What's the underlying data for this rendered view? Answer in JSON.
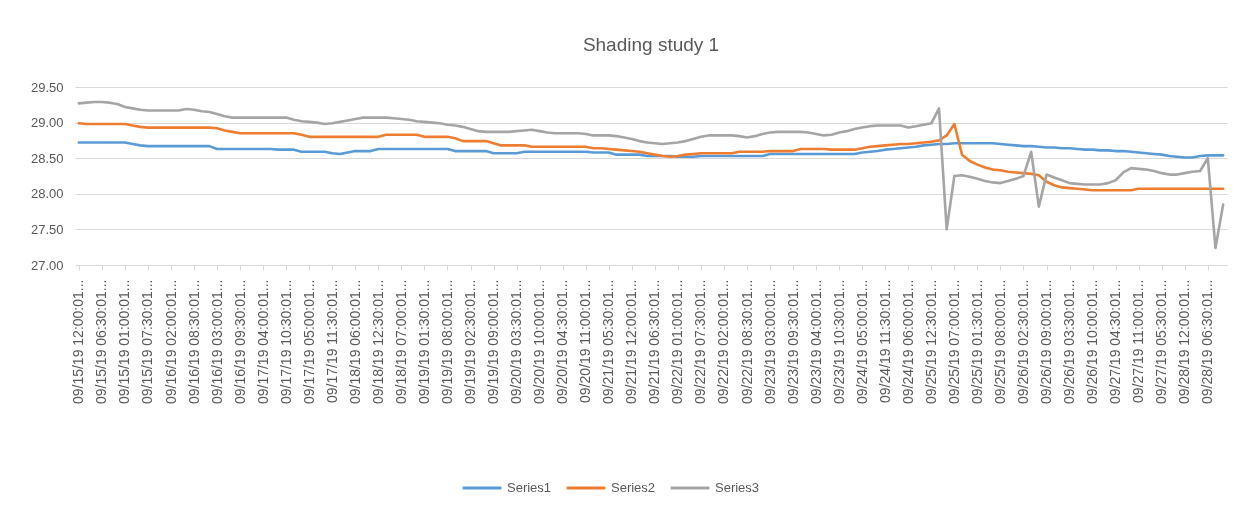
{
  "chart_data": {
    "type": "line",
    "title": "Shading study 1",
    "categories": [
      "09/15/19 12:00:01...",
      null,
      null,
      "09/15/19 06:30:01...",
      null,
      null,
      "09/15/19 01:00:01...",
      null,
      null,
      "09/15/19 07:30:01...",
      null,
      null,
      "09/16/19 02:00:01...",
      null,
      null,
      "09/16/19 08:30:01...",
      null,
      null,
      "09/16/19 03:00:01...",
      null,
      null,
      "09/16/19 09:30:01...",
      null,
      null,
      "09/17/19 04:00:01...",
      null,
      null,
      "09/17/19 10:30:01...",
      null,
      null,
      "09/17/19 05:00:01...",
      null,
      null,
      "09/17/19 11:30:01...",
      null,
      null,
      "09/18/19 06:00:01...",
      null,
      null,
      "09/18/19 12:30:01...",
      null,
      null,
      "09/18/19 07:00:01...",
      null,
      null,
      "09/19/19 01:30:01...",
      null,
      null,
      "09/19/19 08:00:01...",
      null,
      null,
      "09/19/19 02:30:01...",
      null,
      null,
      "09/19/19 09:00:01...",
      null,
      null,
      "09/20/19 03:30:01...",
      null,
      null,
      "09/20/19 10:00:01...",
      null,
      null,
      "09/20/19 04:30:01...",
      null,
      null,
      "09/20/19 11:00:01...",
      null,
      null,
      "09/21/19 05:30:01...",
      null,
      null,
      "09/21/19 12:00:01...",
      null,
      null,
      "09/21/19 06:30:01...",
      null,
      null,
      "09/22/19 01:00:01...",
      null,
      null,
      "09/22/19 07:30:01...",
      null,
      null,
      "09/22/19 02:00:01...",
      null,
      null,
      "09/22/19 08:30:01...",
      null,
      null,
      "09/23/19 03:00:01...",
      null,
      null,
      "09/23/19 09:30:01...",
      null,
      null,
      "09/23/19 04:00:01...",
      null,
      null,
      "09/23/19 10:30:01...",
      null,
      null,
      "09/24/19 05:00:01...",
      null,
      null,
      "09/24/19 11:30:01...",
      null,
      null,
      "09/24/19 06:00:01...",
      null,
      null,
      "09/25/19 12:30:01...",
      null,
      null,
      "09/25/19 07:00:01...",
      null,
      null,
      "09/25/19 01:30:01...",
      null,
      null,
      "09/25/19 08:00:01...",
      null,
      null,
      "09/26/19 02:30:01...",
      null,
      null,
      "09/26/19 09:00:01...",
      null,
      null,
      "09/26/19 03:30:01...",
      null,
      null,
      "09/26/19 10:00:01...",
      null,
      null,
      "09/27/19 04:30:01...",
      null,
      null,
      "09/27/19 11:00:01...",
      null,
      null,
      "09/27/19 05:30:01...",
      null,
      null,
      "09/28/19 12:00:01...",
      null,
      null,
      "09/28/19 06:30:01...",
      null,
      null
    ],
    "series": [
      {
        "name": "Series1",
        "color": "#5b9bd5",
        "values": [
          28.72,
          28.72,
          28.72,
          28.72,
          28.72,
          28.72,
          28.72,
          28.7,
          28.68,
          28.67,
          28.67,
          28.67,
          28.67,
          28.67,
          28.67,
          28.67,
          28.67,
          28.67,
          28.63,
          28.63,
          28.63,
          28.63,
          28.63,
          28.63,
          28.63,
          28.63,
          28.62,
          28.62,
          28.62,
          28.59,
          28.59,
          28.59,
          28.59,
          28.57,
          28.56,
          28.58,
          28.6,
          28.6,
          28.6,
          28.63,
          28.63,
          28.63,
          28.63,
          28.63,
          28.63,
          28.63,
          28.63,
          28.63,
          28.63,
          28.6,
          28.6,
          28.6,
          28.6,
          28.6,
          28.57,
          28.57,
          28.57,
          28.57,
          28.59,
          28.59,
          28.59,
          28.59,
          28.59,
          28.59,
          28.59,
          28.59,
          28.59,
          28.58,
          28.58,
          28.58,
          28.55,
          28.55,
          28.55,
          28.55,
          28.53,
          28.53,
          28.53,
          28.53,
          28.52,
          28.52,
          28.52,
          28.53,
          28.53,
          28.53,
          28.53,
          28.53,
          28.53,
          28.53,
          28.53,
          28.53,
          28.56,
          28.56,
          28.56,
          28.56,
          28.56,
          28.56,
          28.56,
          28.56,
          28.56,
          28.56,
          28.56,
          28.56,
          28.58,
          28.59,
          28.6,
          28.62,
          28.63,
          28.64,
          28.65,
          28.66,
          28.68,
          28.69,
          28.7,
          28.7,
          28.71,
          28.71,
          28.71,
          28.71,
          28.71,
          28.71,
          28.7,
          28.69,
          28.68,
          28.67,
          28.67,
          28.66,
          28.65,
          28.65,
          28.64,
          28.64,
          28.63,
          28.62,
          28.62,
          28.61,
          28.61,
          28.6,
          28.6,
          28.59,
          28.58,
          28.57,
          28.56,
          28.55,
          28.53,
          28.52,
          28.51,
          28.51,
          28.53,
          28.54,
          28.54,
          28.54
        ]
      },
      {
        "name": "Series2",
        "color": "#ed7d31",
        "values": [
          28.99,
          28.98,
          28.98,
          28.98,
          28.98,
          28.98,
          28.98,
          28.96,
          28.94,
          28.93,
          28.93,
          28.93,
          28.93,
          28.93,
          28.93,
          28.93,
          28.93,
          28.93,
          28.92,
          28.89,
          28.87,
          28.85,
          28.85,
          28.85,
          28.85,
          28.85,
          28.85,
          28.85,
          28.85,
          28.83,
          28.8,
          28.8,
          28.8,
          28.8,
          28.8,
          28.8,
          28.8,
          28.8,
          28.8,
          28.8,
          28.83,
          28.83,
          28.83,
          28.83,
          28.83,
          28.8,
          28.8,
          28.8,
          28.8,
          28.78,
          28.74,
          28.74,
          28.74,
          28.74,
          28.71,
          28.68,
          28.68,
          28.68,
          28.68,
          28.66,
          28.66,
          28.66,
          28.66,
          28.66,
          28.66,
          28.66,
          28.66,
          28.64,
          28.64,
          28.63,
          28.62,
          28.61,
          28.6,
          28.59,
          28.57,
          28.55,
          28.53,
          28.52,
          28.53,
          28.55,
          28.56,
          28.57,
          28.57,
          28.57,
          28.57,
          28.57,
          28.59,
          28.59,
          28.59,
          28.59,
          28.6,
          28.6,
          28.6,
          28.6,
          28.63,
          28.63,
          28.63,
          28.63,
          28.62,
          28.62,
          28.62,
          28.62,
          28.64,
          28.66,
          28.67,
          28.68,
          28.69,
          28.7,
          28.7,
          28.71,
          28.72,
          28.73,
          28.75,
          28.82,
          28.98,
          28.55,
          28.46,
          28.41,
          28.37,
          28.34,
          28.33,
          28.31,
          28.3,
          28.29,
          28.28,
          28.26,
          28.17,
          28.12,
          28.09,
          28.08,
          28.07,
          28.06,
          28.05,
          28.05,
          28.05,
          28.05,
          28.05,
          28.05,
          28.07,
          28.07,
          28.07,
          28.07,
          28.07,
          28.07,
          28.07,
          28.07,
          28.07,
          28.07,
          28.07,
          28.07
        ]
      },
      {
        "name": "Series3",
        "color": "#a5a5a5",
        "values": [
          29.27,
          29.28,
          29.29,
          29.29,
          29.28,
          29.26,
          29.22,
          29.2,
          29.18,
          29.17,
          29.17,
          29.17,
          29.17,
          29.17,
          29.19,
          29.18,
          29.16,
          29.15,
          29.12,
          29.09,
          29.07,
          29.07,
          29.07,
          29.07,
          29.07,
          29.07,
          29.07,
          29.07,
          29.04,
          29.02,
          29.01,
          29.0,
          28.98,
          28.99,
          29.01,
          29.03,
          29.05,
          29.07,
          29.07,
          29.07,
          29.07,
          29.06,
          29.05,
          29.04,
          29.02,
          29.01,
          29.0,
          28.99,
          28.97,
          28.96,
          28.94,
          28.91,
          28.88,
          28.87,
          28.87,
          28.87,
          28.87,
          28.88,
          28.89,
          28.9,
          28.88,
          28.86,
          28.85,
          28.85,
          28.85,
          28.85,
          28.84,
          28.82,
          28.82,
          28.82,
          28.81,
          28.79,
          28.77,
          28.74,
          28.72,
          28.71,
          28.7,
          28.71,
          28.72,
          28.74,
          28.77,
          28.8,
          28.82,
          28.82,
          28.82,
          28.82,
          28.81,
          28.79,
          28.81,
          28.84,
          28.86,
          28.87,
          28.87,
          28.87,
          28.87,
          28.86,
          28.84,
          28.82,
          28.83,
          28.86,
          28.88,
          28.91,
          28.93,
          28.95,
          28.96,
          28.96,
          28.96,
          28.96,
          28.93,
          28.95,
          28.97,
          28.99,
          29.2,
          27.5,
          28.25,
          28.26,
          28.24,
          28.21,
          28.18,
          28.16,
          28.15,
          28.18,
          28.21,
          28.25,
          28.59,
          27.82,
          28.27,
          28.23,
          28.19,
          28.15,
          28.14,
          28.13,
          28.13,
          28.13,
          28.15,
          28.19,
          28.3,
          28.36,
          28.35,
          28.34,
          28.32,
          28.29,
          28.27,
          28.27,
          28.29,
          28.31,
          28.32,
          28.5,
          27.24,
          27.85
        ]
      }
    ],
    "ylim": [
      27,
      29.5
    ],
    "yticks": [
      {
        "value": 27,
        "label": "27.00"
      },
      {
        "value": 27.5,
        "label": "27.50"
      },
      {
        "value": 28,
        "label": "28.00"
      },
      {
        "value": 28.5,
        "label": "28.50"
      },
      {
        "value": 29,
        "label": "29.00"
      },
      {
        "value": 29.5,
        "label": "29.50"
      }
    ],
    "grid": "y",
    "legend": "bottom",
    "line_style": "solid"
  }
}
